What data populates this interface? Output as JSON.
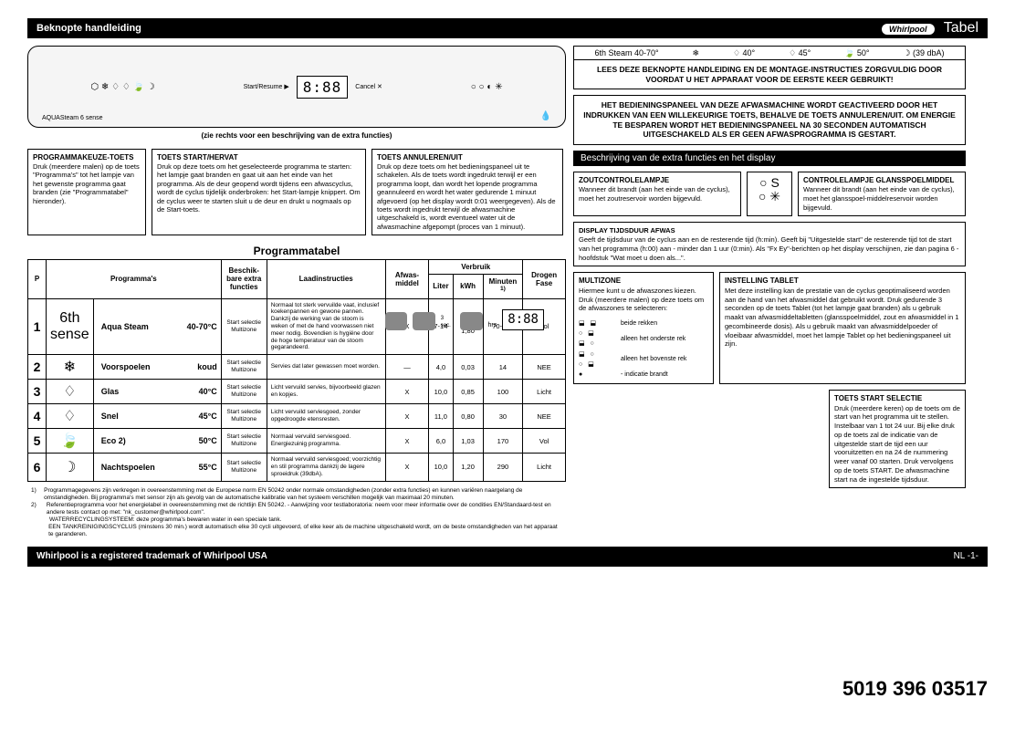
{
  "header": {
    "title": "Beknopte handleiding",
    "brand": "Whirlpool",
    "tabel": "Tabel"
  },
  "footer": {
    "left": "Whirlpool is a registered trademark of Whirlpool USA",
    "right": "NL -1-"
  },
  "partNumber": "5019 396 03517",
  "controlPanel": {
    "display": "8:88",
    "aquaSteam": "AQUASteam 6 sense",
    "extraNote": "(zie rechts voor een beschrijving van de extra functies)"
  },
  "tempRow": [
    "6th Steam 40-70°",
    "❄",
    "♢ 40°",
    "♢ 45°",
    "🍃 50°",
    "☽ (39 dbA)"
  ],
  "callouts": {
    "c1": {
      "title": "PROGRAMMAKEUZE-TOETS",
      "body": "Druk (meerdere malen) op de toets \"Programma's\" tot het lampje van het gewenste programma gaat branden (zie \"Programmatabel\" hieronder)."
    },
    "c2": {
      "title": "TOETS START/HERVAT",
      "body": "Druk op deze toets om het geselecteerde programma te starten: het lampje gaat branden en gaat uit aan het einde van het programma. Als de deur geopend wordt tijdens een afwascyclus, wordt de cyclus tijdelijk onderbroken: het Start-lampje knippert. Om de cyclus weer te starten sluit u de deur en drukt u nogmaals op de Start-toets."
    },
    "c3": {
      "title": "TOETS ANNULEREN/UIT",
      "body": "Druk op deze toets om het bedieningspaneel uit te schakelen. Als de toets wordt ingedrukt terwijl er een programma loopt, dan wordt het lopende programma geannuleerd en wordt het water gedurende 1 minuut afgevoerd (op het display wordt 0:01 weergegeven). Als de toets wordt ingedrukt terwijl de afwasmachine uitgeschakeld is, wordt eventueel water uit de afwasmachine afgepompt (proces van 1 minuut)."
    }
  },
  "notices": {
    "n1": "LEES DEZE BEKNOPTE HANDLEIDING EN DE MONTAGE-INSTRUCTIES ZORGVULDIG DOOR VOORDAT U HET APPARAAT VOOR DE EERSTE KEER GEBRUIKT!",
    "n2": "HET BEDIENINGSPANEEL VAN DEZE AFWASMACHINE WORDT GEACTIVEERD DOOR HET INDRUKKEN VAN EEN WILLEKEURIGE TOETS, BEHALVE DE TOETS ANNULEREN/UIT. OM ENERGIE TE BESPAREN WORDT HET BEDIENINGSPANEEL NA 30 SECONDEN AUTOMATISCH UITGESCHAKELD ALS ER GEEN AFWASPROGRAMMA IS GESTART."
  },
  "sectionBar": "Beschrijving van de extra functies en het display",
  "descBoxes": {
    "salt": {
      "title": "ZOUTCONTROLELAMPJE",
      "body": "Wanneer dit brandt (aan het einde van de cyclus), moet het zoutreservoir worden bijgevuld.",
      "icon": "S ✳"
    },
    "rinse": {
      "title": "CONTROLELAMPJE GLANSSPOELMIDDEL",
      "body": "Wanneer dit brandt (aan het einde van de cyclus), moet het glansspoel-middelreservoir worden bijgevuld."
    },
    "display": {
      "title": "DISPLAY TIJDSDUUR AFWAS",
      "body": "Geeft de tijdsduur van de cyclus aan en de resterende tijd (h:min). Geeft bij \"Uitgestelde start\" de resterende tijd tot de start van het programma (h:00) aan - minder dan 1 uur (0:min). Als \"Fx Ey\"-berichten op het display verschijnen, zie dan pagina 6 - hoofdstuk \"Wat moet u doen als...\"."
    }
  },
  "multizone": {
    "title": "MULTIZONE",
    "body": "Hiermee kunt u de afwaszones kiezen. Druk (meerdere malen) op deze toets om de afwaszones te selecteren:",
    "r1": "beide rekken",
    "r2": "alleen het onderste rek",
    "r3": "alleen het bovenste rek",
    "r4": "- indicatie brandt"
  },
  "tablet": {
    "title": "INSTELLING TABLET",
    "body": "Met deze instelling kan de prestatie van de cyclus geoptimaliseerd worden aan de hand van het afwasmiddel dat gebruikt wordt. Druk gedurende 3 seconden op de toets Tablet (tot het lampje gaat branden) als u gebruik maakt van afwasmiddeltabletten (glansspoelmiddel, zout en afwasmiddel in 1 gecombineerde dosis). Als u gebruik maakt van afwasmiddelpoeder of vloeibaar afwasmiddel, moet het lampje Tablet op het bedieningspaneel uit zijn."
  },
  "startSel": {
    "title": "TOETS START SELECTIE",
    "body": "Druk (meerdere keren) op de toets om de start van het programma uit te stellen. Instelbaar van 1 tot 24 uur. Bij elke druk op de toets zal de indicatie van de uitgestelde start de tijd een uur vooruitzetten en na 24 de nummering weer vanaf 00 starten. Druk vervolgens op de toets START. De afwasmachine start na de ingestelde tijdsduur."
  },
  "tableHeader": {
    "main": "Programmatabel",
    "P": "P",
    "programs": "Programma's",
    "extras": "Beschik-bare extra functies",
    "instr": "Laadinstructies",
    "afwas": "Afwas-middel",
    "verbruik": "Verbruik",
    "liter": "Liter",
    "kwh": "kWh",
    "min": "Minuten",
    "minSup": "1)",
    "drogen": "Drogen Fase"
  },
  "rows": [
    {
      "n": "1",
      "icon": "6th sense",
      "name": "Aqua Steam",
      "temp": "40-70°C",
      "extras": "Start selectie Multizone",
      "instr": "Normaal tot sterk vervuilde vaat, inclusief koekenpannen en gewone pannen. Dankzij de werking van de stoom is weken of met de hand voorwassen niet meer nodig. Bovendien is hygiëne door de hoge temperatuur van de stoom gegarandeerd.",
      "mid": "X",
      "l": "7-14",
      "kwh": "0,99-1,80",
      "min": "70-160",
      "dry": "Vol"
    },
    {
      "n": "2",
      "icon": "❄",
      "name": "Voorspoelen",
      "temp": "koud",
      "extras": "Start selectie Multizone",
      "instr": "Servies dat later gewassen moet worden.",
      "mid": "—",
      "l": "4,0",
      "kwh": "0,03",
      "min": "14",
      "dry": "NEE"
    },
    {
      "n": "3",
      "icon": "♢",
      "name": "Glas",
      "temp": "40°C",
      "extras": "Start selectie Multizone",
      "instr": "Licht vervuild servies, bijvoorbeeld glazen en kopjes.",
      "mid": "X",
      "l": "10,0",
      "kwh": "0,85",
      "min": "100",
      "dry": "Licht"
    },
    {
      "n": "4",
      "icon": "♢",
      "name": "Snel",
      "temp": "45°C",
      "extras": "Start selectie Multizone",
      "instr": "Licht vervuild serviesgoed, zonder opgedroogde etensresten.",
      "mid": "X",
      "l": "11,0",
      "kwh": "0,80",
      "min": "30",
      "dry": "NEE"
    },
    {
      "n": "5",
      "icon": "🍃",
      "name": "Eco 2)",
      "temp": "50°C",
      "extras": "Start selectie Multizone",
      "instr": "Normaal vervuild serviesgoed. Energiezuinig programma.",
      "mid": "X",
      "l": "6,0",
      "kwh": "1,03",
      "min": "170",
      "dry": "Vol"
    },
    {
      "n": "6",
      "icon": "☽",
      "name": "Nachtspoelen",
      "temp": "55°C",
      "extras": "Start selectie Multizone",
      "instr": "Normaal vervuild serviesgoed; voorzichtig en stil programma dankzij de lagere sproeidruk (39dbA).",
      "mid": "X",
      "l": "10,0",
      "kwh": "1,20",
      "min": "290",
      "dry": "Licht"
    }
  ],
  "footnotes": {
    "f1n": "1)",
    "f1": "Programmagegevens zijn verkregen in overeenstemming met de Europese norm EN 50242 onder normale omstandigheden (zonder extra functies) en kunnen variëren naargelang de omstandigheden. Bij programma's met sensor zijn als gevolg van de automatische kalibratie van het systeem verschillen mogelijk van maximaal 20 minuten.",
    "f2n": "2)",
    "f2": "Referentieprogramma voor het energielabel in overeenstemming met de richtlijn EN 50242. - Aanwijzing voor testlaboratoria: neem voor meer informatie over de condities EN/Standaard-test en andere tests contact op met: \"nk_customer@whirlpool.com\".",
    "f3": "WATERRECYCLINGSYSTEEM: deze programma's bewaren water in een speciale tank.",
    "f4": "EEN TANKREINIGINGSCYCLUS (minstens 30 min.) wordt automatisch elke 30 cycli uitgevoerd, of elke keer als de machine uitgeschakeld wordt, om de beste omstandigheden van het apparaat te garanderen."
  },
  "floatDisplay": "8:88"
}
